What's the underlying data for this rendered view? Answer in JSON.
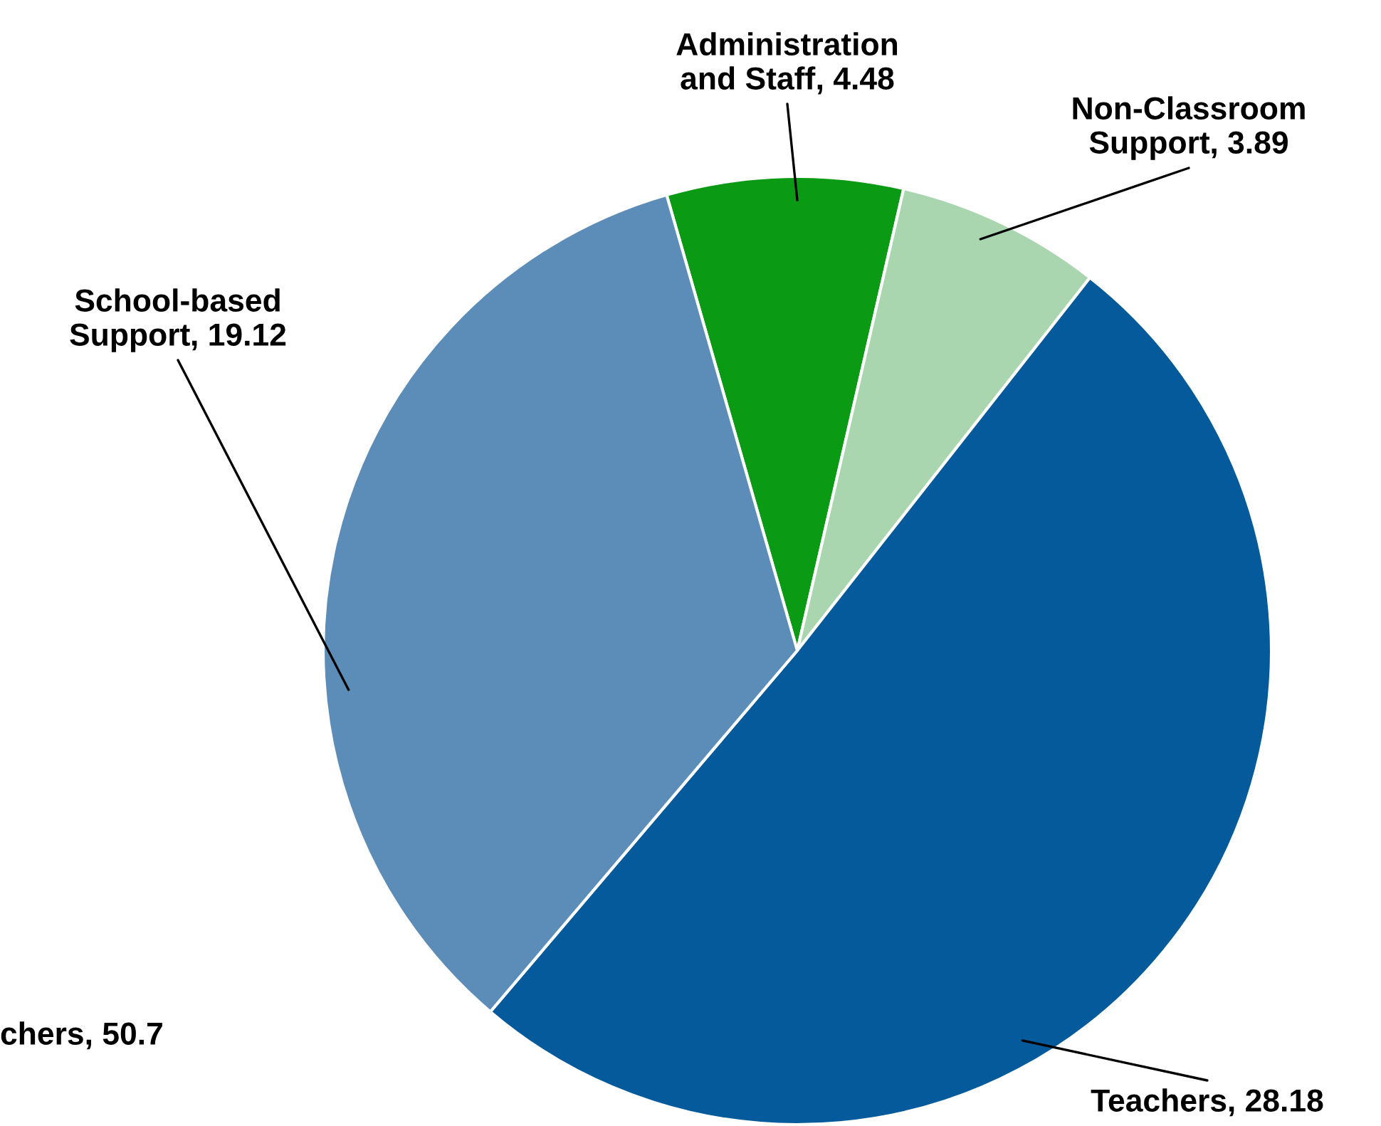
{
  "chart_data": {
    "type": "pie",
    "categories": [
      "Administration\nand Staff",
      "Non-Classroom\nSupport",
      "Teachers",
      "School-based\nSupport"
    ],
    "values": [
      4.48,
      3.89,
      28.18,
      19.12
    ],
    "colors": [
      "#0a9a14",
      "#a9d6ae",
      "#045a9a",
      "#5b8db8"
    ],
    "value_labels": [
      ", 4.48",
      ", 3.89",
      ", 28.18",
      ", 19.12"
    ],
    "annotations": [
      "chers, 50.7"
    ]
  }
}
